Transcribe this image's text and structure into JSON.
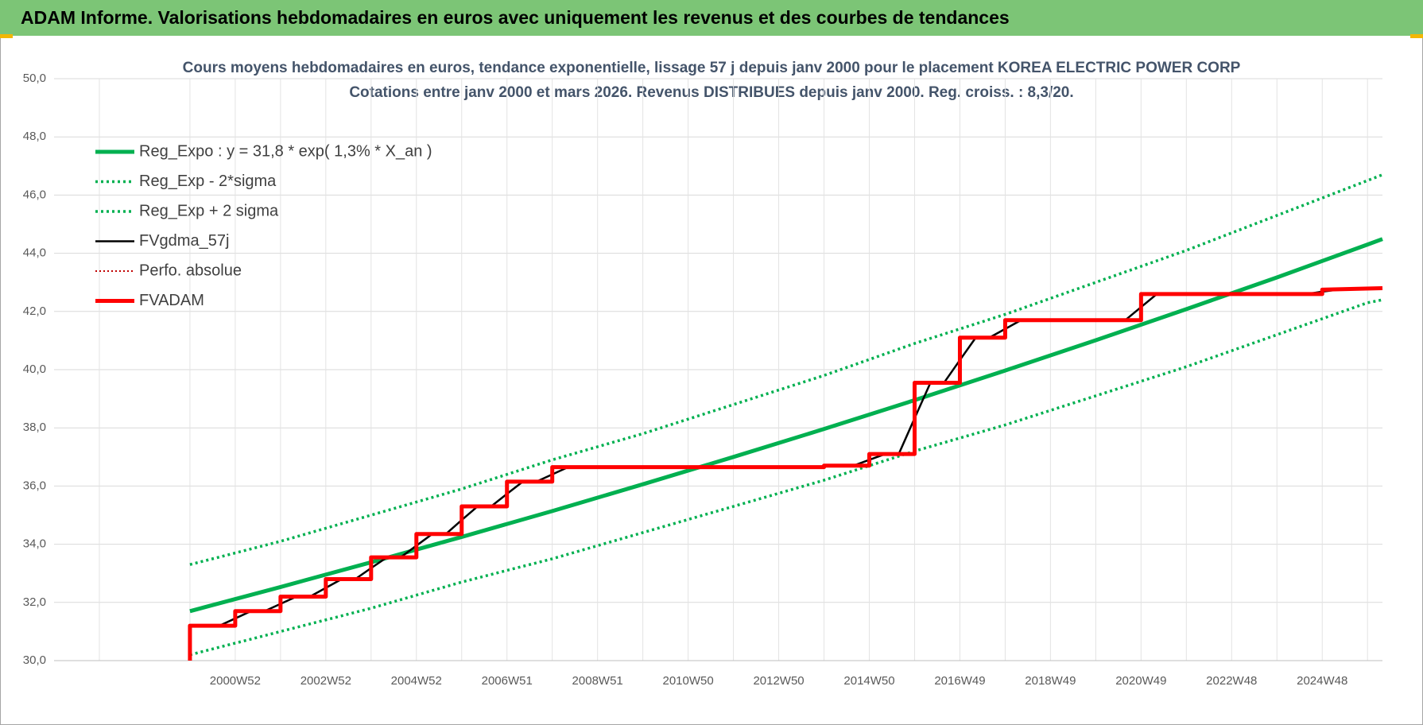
{
  "banner": "ADAM Informe. Valorisations hebdomadaires en euros avec uniquement les revenus et des courbes de tendances",
  "chart_data": {
    "type": "line",
    "title": "Cours moyens hebdomadaires en euros, tendance exponentielle, lissage 57 j depuis janv 2000  pour le placement KOREA ELECTRIC POWER CORP",
    "subtitle": "Cotations entre janv 2000 et mars 2026. Revenus DISTRIBUES depuis janv 2000.  Reg. croiss. : 8,3/20.",
    "xlim": [
      1997,
      2026.33
    ],
    "xticks": [
      {
        "value": 2001,
        "label": "2000W52"
      },
      {
        "value": 2003,
        "label": "2002W52"
      },
      {
        "value": 2005,
        "label": "2004W52"
      },
      {
        "value": 2007,
        "label": "2006W51"
      },
      {
        "value": 2009,
        "label": "2008W51"
      },
      {
        "value": 2011,
        "label": "2010W50"
      },
      {
        "value": 2013,
        "label": "2012W50"
      },
      {
        "value": 2015,
        "label": "2014W50"
      },
      {
        "value": 2017,
        "label": "2016W49"
      },
      {
        "value": 2019,
        "label": "2018W49"
      },
      {
        "value": 2021,
        "label": "2020W49"
      },
      {
        "value": 2023,
        "label": "2022W48"
      },
      {
        "value": 2025,
        "label": "2024W48"
      }
    ],
    "minor_xticks": [
      1998,
      2000,
      2002,
      2004,
      2006,
      2008,
      2010,
      2012,
      2014,
      2016,
      2018,
      2020,
      2022,
      2024,
      2026
    ],
    "ylim": [
      30,
      50
    ],
    "yticks": [
      {
        "value": 30,
        "label": "30,0"
      },
      {
        "value": 32,
        "label": "32,0"
      },
      {
        "value": 34,
        "label": "34,0"
      },
      {
        "value": 36,
        "label": "36,0"
      },
      {
        "value": 38,
        "label": "38,0"
      },
      {
        "value": 40,
        "label": "40,0"
      },
      {
        "value": 42,
        "label": "42,0"
      },
      {
        "value": 44,
        "label": "44,0"
      },
      {
        "value": 46,
        "label": "46,0"
      },
      {
        "value": 48,
        "label": "48,0"
      },
      {
        "value": 50,
        "label": "50,0"
      }
    ],
    "grid": true,
    "legend": "upper left",
    "series": [
      {
        "name": "Reg_Expo : y = 31,8 * exp( 1,3% *  X_an )",
        "color": "#00b050",
        "style": "thick",
        "x": [
          2000,
          2002,
          2004,
          2006,
          2008,
          2010,
          2012,
          2014,
          2016,
          2018,
          2020,
          2022,
          2024,
          2026,
          2026.33
        ],
        "values": [
          31.7,
          32.53,
          33.38,
          34.25,
          35.14,
          36.06,
          37.0,
          37.96,
          38.95,
          39.97,
          41.01,
          42.08,
          43.17,
          44.3,
          44.49
        ]
      },
      {
        "name": "Reg_Exp - 2*sigma",
        "color": "#00b050",
        "style": "dotted",
        "x": [
          2000,
          2002,
          2004,
          2006,
          2008,
          2010,
          2012,
          2014,
          2016,
          2018,
          2020,
          2022,
          2024,
          2026,
          2026.33
        ],
        "values": [
          30.2,
          31.0,
          31.8,
          32.7,
          33.5,
          34.4,
          35.3,
          36.2,
          37.2,
          38.1,
          39.1,
          40.1,
          41.2,
          42.3,
          42.4
        ]
      },
      {
        "name": "Reg_Exp + 2 sigma",
        "color": "#00b050",
        "style": "dotted",
        "x": [
          2000,
          2002,
          2004,
          2006,
          2008,
          2010,
          2012,
          2014,
          2016,
          2018,
          2020,
          2022,
          2024,
          2026,
          2026.33
        ],
        "values": [
          33.3,
          34.1,
          35.0,
          35.9,
          36.9,
          37.8,
          38.8,
          39.8,
          40.9,
          41.9,
          43.0,
          44.1,
          45.3,
          46.5,
          46.7
        ]
      },
      {
        "name": "FVgdma_57j",
        "color": "#000000",
        "style": "thin",
        "x": [
          2000,
          2000.65,
          2001,
          2001.35,
          2001.65,
          2002,
          2002.35,
          2002.65,
          2003,
          2003.35,
          2003.65,
          2004,
          2004.35,
          2004.65,
          2005,
          2005.35,
          2005.65,
          2006,
          2006.35,
          2006.65,
          2007,
          2007.35,
          2007.65,
          2008,
          2008.35,
          2013.65,
          2014,
          2014.35,
          2014.65,
          2015,
          2015.35,
          2015.65,
          2016,
          2016.35,
          2016.65,
          2017,
          2017.35,
          2017.65,
          2018,
          2018.35,
          2020.65,
          2021,
          2021.35,
          2024.65,
          2025,
          2025.35,
          2026.33
        ],
        "values": [
          31.2,
          31.2,
          31.45,
          31.7,
          31.7,
          31.95,
          32.2,
          32.2,
          32.5,
          32.8,
          32.8,
          33.18,
          33.55,
          33.55,
          33.95,
          34.35,
          34.35,
          34.83,
          35.3,
          35.3,
          35.73,
          36.15,
          36.15,
          36.4,
          36.65,
          36.65,
          36.68,
          36.7,
          36.7,
          36.9,
          37.1,
          37.1,
          38.33,
          39.55,
          39.55,
          40.33,
          41.1,
          41.1,
          41.4,
          41.7,
          41.7,
          42.15,
          42.6,
          42.6,
          42.68,
          42.75,
          42.8
        ]
      },
      {
        "name": "Perfo. absolue",
        "color": "#c00000",
        "style": "fine-dotted"
      },
      {
        "name": "FVADAM",
        "color": "#ff0000",
        "style": "thick",
        "x": [
          2000,
          2000,
          2001,
          2001,
          2002,
          2002,
          2003,
          2003,
          2004,
          2004,
          2005,
          2005,
          2006,
          2006,
          2007,
          2007,
          2008,
          2008,
          2014,
          2014,
          2015,
          2015,
          2016,
          2016,
          2017,
          2017,
          2018,
          2018,
          2021,
          2021,
          2025,
          2025,
          2026.33
        ],
        "values": [
          30.0,
          31.2,
          31.2,
          31.7,
          31.7,
          32.2,
          32.2,
          32.8,
          32.8,
          33.55,
          33.55,
          34.35,
          34.35,
          35.3,
          35.3,
          36.15,
          36.15,
          36.65,
          36.65,
          36.7,
          36.7,
          37.1,
          37.1,
          39.55,
          39.55,
          41.1,
          41.1,
          41.7,
          41.7,
          42.6,
          42.6,
          42.75,
          42.8
        ]
      }
    ]
  }
}
